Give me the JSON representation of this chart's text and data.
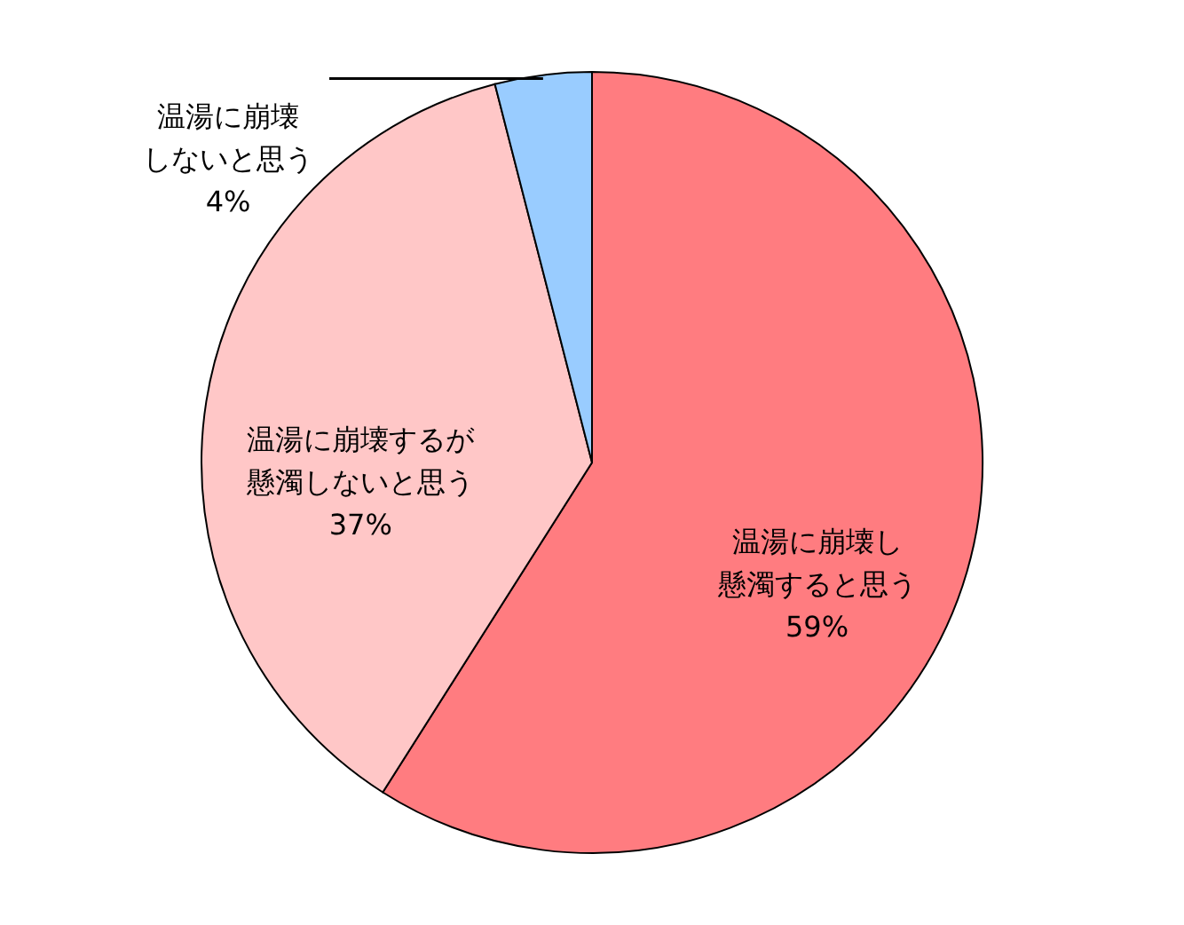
{
  "chart_data": {
    "type": "pie",
    "categories": [
      "温湯に崩壊し懸濁すると思う",
      "温湯に崩壊するが懸濁しないと思う",
      "温湯に崩壊しないと思う"
    ],
    "values": [
      59,
      37,
      4
    ],
    "value_labels": [
      "59%",
      "37%",
      "4%"
    ],
    "colors": [
      "#ff7c80",
      "#ffc7c7",
      "#99ccff"
    ]
  }
}
